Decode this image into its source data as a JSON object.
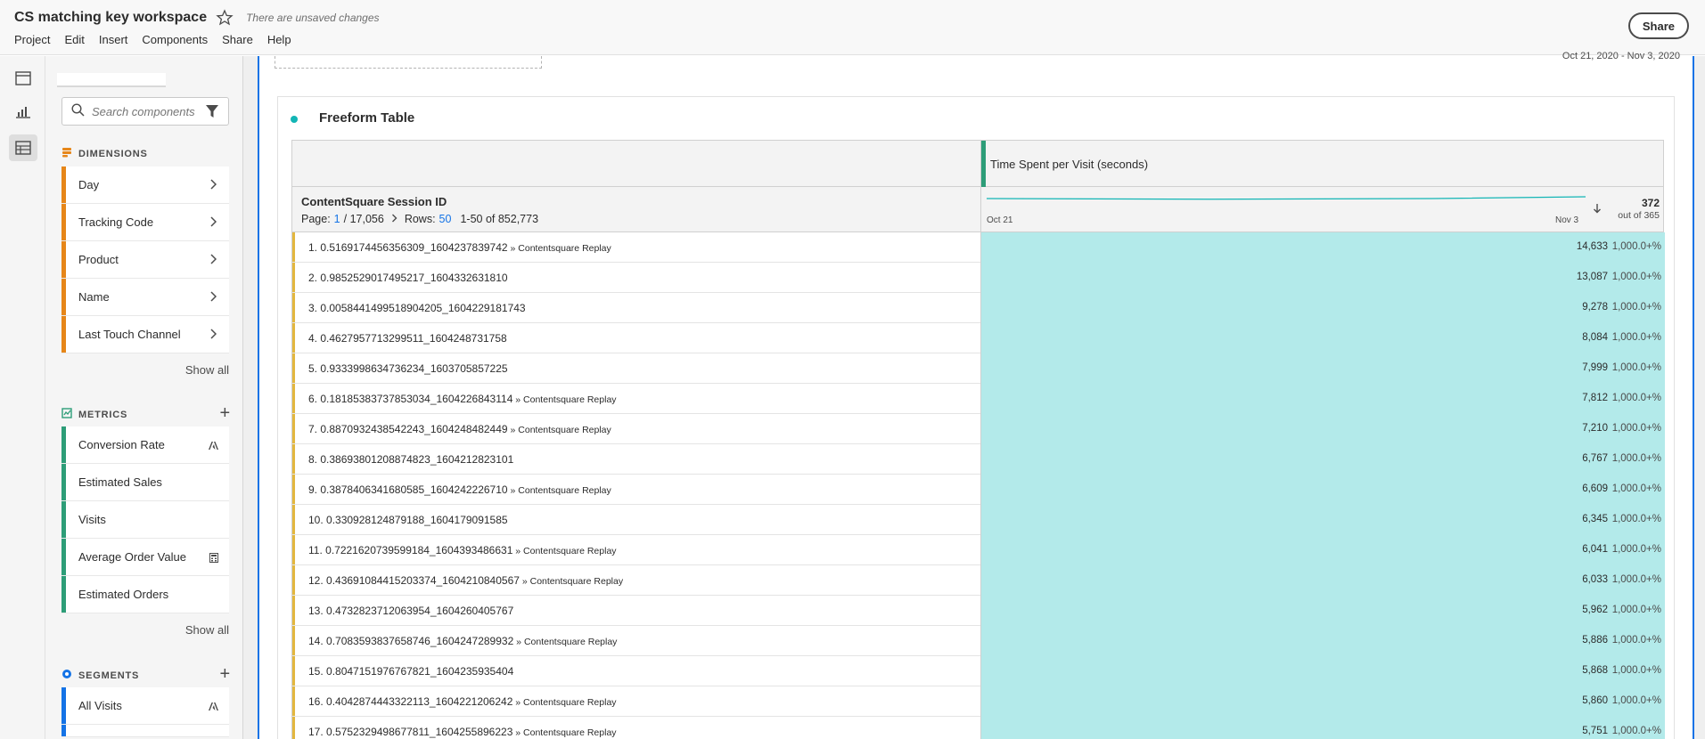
{
  "header": {
    "title": "CS matching key workspace",
    "unsaved": "There are unsaved changes",
    "menu": [
      "Project",
      "Edit",
      "Insert",
      "Components",
      "Share",
      "Help"
    ],
    "share_label": "Share"
  },
  "panel": {
    "search_placeholder": "Search components",
    "dimensions": {
      "title": "DIMENSIONS",
      "items": [
        "Day",
        "Tracking Code",
        "Product",
        "Name",
        "Last Touch Channel"
      ],
      "show_all": "Show all"
    },
    "metrics": {
      "title": "METRICS",
      "items": [
        "Conversion Rate",
        "Estimated Sales",
        "Visits",
        "Average Order Value",
        "Estimated Orders"
      ],
      "show_all": "Show all"
    },
    "segments": {
      "title": "SEGMENTS",
      "items": [
        "All Visits"
      ]
    }
  },
  "workspace": {
    "date_range": "Oct 21, 2020 - Nov 3, 2020",
    "panel_title": "Freeform Table",
    "table": {
      "metric_header": "Time Spent per Visit (seconds)",
      "dimension_header": "ContentSquare Session ID",
      "pager": {
        "page_label": "Page:",
        "page": "1",
        "page_total": "/ 17,056",
        "rows_label": "Rows:",
        "rows": "50",
        "range": "1-50 of 852,773"
      },
      "spark_from": "Oct 21",
      "spark_to": "Nov 3",
      "total": "372",
      "total_sub": "out of 365",
      "rows": [
        {
          "n": "1.",
          "id": "0.5169174456356309_1604237839742",
          "suffix": " » Contentsquare Replay",
          "value": "14,633",
          "pct": "1,000.0+%"
        },
        {
          "n": "2.",
          "id": "0.9852529017495217_1604332631810",
          "suffix": "",
          "value": "13,087",
          "pct": "1,000.0+%"
        },
        {
          "n": "3.",
          "id": "0.0058441499518904205_1604229181743",
          "suffix": "",
          "value": "9,278",
          "pct": "1,000.0+%"
        },
        {
          "n": "4.",
          "id": "0.4627957713299511_1604248731758",
          "suffix": "",
          "value": "8,084",
          "pct": "1,000.0+%"
        },
        {
          "n": "5.",
          "id": "0.9333998634736234_1603705857225",
          "suffix": "",
          "value": "7,999",
          "pct": "1,000.0+%"
        },
        {
          "n": "6.",
          "id": "0.18185383737853034_1604226843114",
          "suffix": " » Contentsquare Replay",
          "value": "7,812",
          "pct": "1,000.0+%"
        },
        {
          "n": "7.",
          "id": "0.8870932438542243_1604248482449",
          "suffix": " » Contentsquare Replay",
          "value": "7,210",
          "pct": "1,000.0+%"
        },
        {
          "n": "8.",
          "id": "0.38693801208874823_1604212823101",
          "suffix": "",
          "value": "6,767",
          "pct": "1,000.0+%"
        },
        {
          "n": "9.",
          "id": "0.3878406341680585_1604242226710",
          "suffix": " » Contentsquare Replay",
          "value": "6,609",
          "pct": "1,000.0+%"
        },
        {
          "n": "10.",
          "id": "0.330928124879188_1604179091585",
          "suffix": "",
          "value": "6,345",
          "pct": "1,000.0+%"
        },
        {
          "n": "11.",
          "id": "0.7221620739599184_1604393486631",
          "suffix": " » Contentsquare Replay",
          "value": "6,041",
          "pct": "1,000.0+%"
        },
        {
          "n": "12.",
          "id": "0.43691084415203374_1604210840567",
          "suffix": " » Contentsquare Replay",
          "value": "6,033",
          "pct": "1,000.0+%"
        },
        {
          "n": "13.",
          "id": "0.4732823712063954_1604260405767",
          "suffix": "",
          "value": "5,962",
          "pct": "1,000.0+%"
        },
        {
          "n": "14.",
          "id": "0.7083593837658746_1604247289932",
          "suffix": " » Contentsquare Replay",
          "value": "5,886",
          "pct": "1,000.0+%"
        },
        {
          "n": "15.",
          "id": "0.8047151976767821_1604235935404",
          "suffix": "",
          "value": "5,868",
          "pct": "1,000.0+%"
        },
        {
          "n": "16.",
          "id": "0.4042874443322113_1604221206242",
          "suffix": " » Contentsquare Replay",
          "value": "5,860",
          "pct": "1,000.0+%"
        },
        {
          "n": "17.",
          "id": "0.5752329498677811_1604255896223",
          "suffix": " » Contentsquare Replay",
          "value": "5,751",
          "pct": "1,000.0+%"
        }
      ]
    }
  },
  "colors": {
    "dimension_bar": "#e68619",
    "metric_bar": "#2d9d78",
    "segment_bar": "#1473e6",
    "metric_fill": "#b3eaea",
    "row_accent": "#e3b73f"
  }
}
